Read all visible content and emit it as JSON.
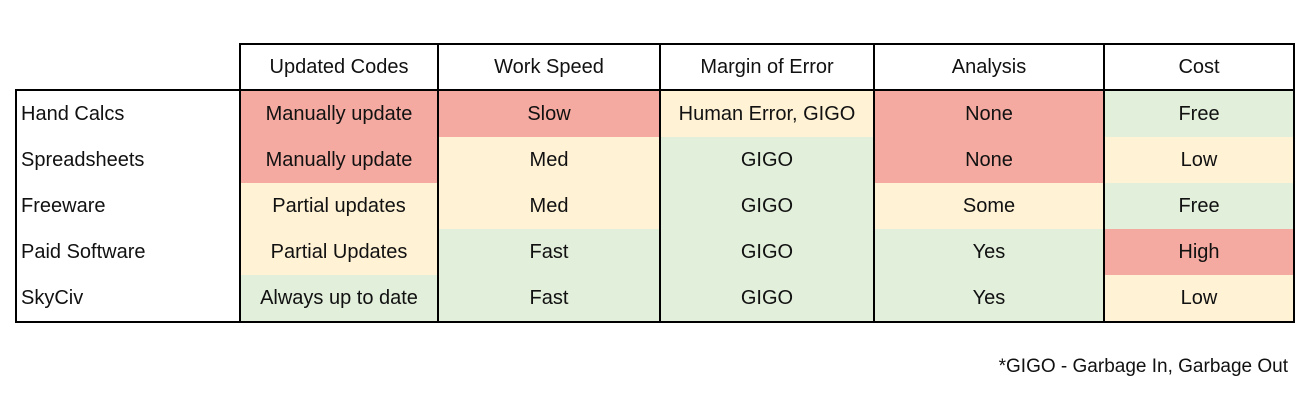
{
  "columns": [
    "Updated Codes",
    "Work Speed",
    "Margin of Error",
    "Analysis",
    "Cost"
  ],
  "rows": [
    {
      "label": "Hand Calcs",
      "cells": [
        "Manually update",
        "Slow",
        "Human Error, GIGO",
        "None",
        "Free"
      ]
    },
    {
      "label": "Spreadsheets",
      "cells": [
        "Manually update",
        "Med",
        "GIGO",
        "None",
        "Low"
      ]
    },
    {
      "label": "Freeware",
      "cells": [
        "Partial updates",
        "Med",
        "GIGO",
        "Some",
        "Free"
      ]
    },
    {
      "label": "Paid Software",
      "cells": [
        "Partial Updates",
        "Fast",
        "GIGO",
        "Yes",
        "High"
      ]
    },
    {
      "label": "SkyCiv",
      "cells": [
        "Always up to date",
        "Fast",
        "GIGO",
        "Yes",
        "Low"
      ]
    }
  ],
  "ratings": [
    [
      "red",
      "red",
      "yellow",
      "red",
      "green"
    ],
    [
      "red",
      "yellow",
      "green",
      "red",
      "yellow"
    ],
    [
      "yellow",
      "yellow",
      "green",
      "yellow",
      "green"
    ],
    [
      "yellow",
      "green",
      "green",
      "green",
      "red"
    ],
    [
      "green",
      "green",
      "green",
      "green",
      "yellow"
    ]
  ],
  "colors": {
    "red": "#f4aaa0",
    "yellow": "#fff2d5",
    "green": "#e2efdb"
  },
  "footnote": "*GIGO - Garbage In, Garbage Out"
}
